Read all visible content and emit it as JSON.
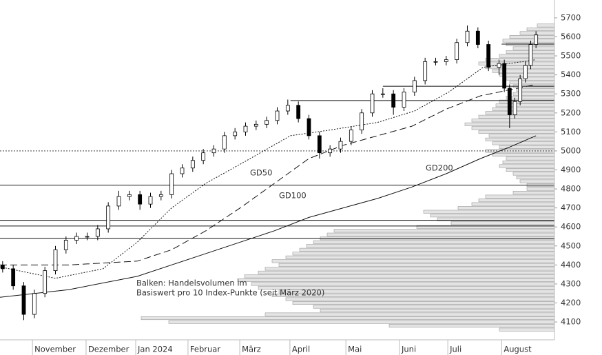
{
  "chart_data": {
    "type": "candlestick",
    "xlim": [
      0,
      210
    ],
    "xticks": [
      {
        "value": 12.3,
        "label": "November"
      },
      {
        "value": 32.6,
        "label": "Dezember"
      },
      {
        "value": 51.4,
        "label": "Jan 2024"
      },
      {
        "value": 71.2,
        "label": "Februar"
      },
      {
        "value": 90.8,
        "label": "März"
      },
      {
        "value": 109.8,
        "label": "April"
      },
      {
        "value": 131,
        "label": "Mai"
      },
      {
        "value": 151.3,
        "label": "Juni"
      },
      {
        "value": 169.6,
        "label": "Juli"
      },
      {
        "value": 190,
        "label": "August"
      }
    ],
    "ylim": [
      4006,
      5794
    ],
    "yticks": [
      4100,
      4200,
      4300,
      4400,
      4500,
      4600,
      4700,
      4800,
      4900,
      5000,
      5100,
      5200,
      5300,
      5400,
      5500,
      5600,
      5700
    ],
    "x": [
      1,
      5,
      9,
      13,
      17,
      21,
      25,
      29,
      33,
      37,
      41,
      45,
      49,
      53,
      57,
      61,
      65,
      69,
      73,
      77,
      81,
      85,
      89,
      93,
      97,
      101,
      105,
      109,
      113,
      117,
      121,
      125,
      129,
      133,
      137,
      141,
      145,
      149,
      153,
      157,
      161,
      165,
      169,
      173,
      177,
      181,
      185,
      189,
      191,
      193,
      195,
      197,
      199,
      201,
      203
    ],
    "open": [
      4400,
      4380,
      4290,
      4140,
      4250,
      4370,
      4480,
      4530,
      4550,
      4550,
      4590,
      4710,
      4760,
      4770,
      4720,
      4760,
      4770,
      4880,
      4910,
      4950,
      4990,
      5010,
      5080,
      5100,
      5130,
      5140,
      5160,
      5210,
      5240,
      5170,
      5080,
      4990,
      5010,
      5050,
      5110,
      5200,
      5300,
      5300,
      5230,
      5310,
      5370,
      5470,
      5470,
      5480,
      5570,
      5630,
      5560,
      5440,
      5460,
      5330,
      5190,
      5260,
      5380,
      5450,
      5560
    ],
    "high": [
      4420,
      4400,
      4310,
      4270,
      4390,
      4500,
      4550,
      4570,
      4570,
      4610,
      4730,
      4790,
      4790,
      4790,
      4780,
      4790,
      4900,
      4930,
      4970,
      5010,
      5030,
      5100,
      5120,
      5150,
      5160,
      5180,
      5230,
      5270,
      5260,
      5190,
      5100,
      5030,
      5070,
      5130,
      5220,
      5320,
      5330,
      5320,
      5330,
      5390,
      5490,
      5490,
      5500,
      5590,
      5660,
      5650,
      5580,
      5480,
      5480,
      5350,
      5280,
      5400,
      5470,
      5580,
      5630
    ],
    "low": [
      4360,
      4270,
      4110,
      4120,
      4230,
      4350,
      4460,
      4510,
      4530,
      4530,
      4570,
      4690,
      4740,
      4690,
      4700,
      4740,
      4750,
      4860,
      4890,
      4930,
      4970,
      4990,
      5060,
      5080,
      5110,
      5120,
      5140,
      5190,
      5150,
      5060,
      4960,
      4970,
      4990,
      5030,
      5090,
      5180,
      5280,
      5190,
      5210,
      5290,
      5350,
      5450,
      5450,
      5460,
      5550,
      5540,
      5420,
      5400,
      5310,
      5120,
      5170,
      5240,
      5360,
      5430,
      5540
    ],
    "close": [
      4380,
      4290,
      4140,
      4250,
      4370,
      4480,
      4530,
      4550,
      4550,
      4590,
      4710,
      4760,
      4770,
      4720,
      4760,
      4770,
      4880,
      4910,
      4950,
      4990,
      5010,
      5080,
      5100,
      5130,
      5140,
      5160,
      5210,
      5240,
      5170,
      5080,
      4990,
      5010,
      5050,
      5110,
      5200,
      5300,
      5300,
      5230,
      5310,
      5370,
      5470,
      5470,
      5480,
      5570,
      5630,
      5560,
      5440,
      5460,
      5330,
      5190,
      5260,
      5380,
      5450,
      5560,
      5610
    ],
    "moving_averages": [
      {
        "name": "GD50",
        "style": "dotted",
        "x": [
          0,
          21,
          39,
          52,
          65,
          78,
          91,
          110,
          125,
          143,
          157,
          170,
          183,
          203
        ],
        "values": [
          4390,
          4330,
          4380,
          4520,
          4700,
          4830,
          4930,
          5080,
          5110,
          5150,
          5210,
          5310,
          5440,
          5480
        ]
      },
      {
        "name": "GD100",
        "style": "dashed",
        "x": [
          0,
          26,
          52,
          65,
          78,
          91,
          104,
          117,
          130,
          143,
          156,
          169,
          182,
          203
        ],
        "values": [
          4400,
          4400,
          4420,
          4480,
          4580,
          4700,
          4830,
          4960,
          5030,
          5080,
          5130,
          5220,
          5290,
          5350
        ]
      },
      {
        "name": "GD200",
        "style": "solid",
        "x": [
          0,
          26,
          52,
          78,
          104,
          117,
          130,
          143,
          156,
          169,
          182,
          193,
          203
        ],
        "values": [
          4230,
          4270,
          4340,
          4460,
          4580,
          4650,
          4700,
          4750,
          4810,
          4880,
          4960,
          5020,
          5080
        ]
      }
    ],
    "levels": [
      {
        "value": 5562,
        "from": 190
      },
      {
        "value": 5340,
        "from": 145
      },
      {
        "value": 5265,
        "from": 110
      },
      {
        "value": 4820,
        "from": 0
      },
      {
        "value": 4635,
        "from": 0
      },
      {
        "value": 4605,
        "from": 0
      },
      {
        "value": 4540,
        "from": 0
      }
    ],
    "reference_line": 5000,
    "volume_profile": {
      "price": [
        4060,
        4080,
        4100,
        4120,
        4140,
        4160,
        4180,
        4200,
        4220,
        4240,
        4260,
        4280,
        4300,
        4320,
        4340,
        4360,
        4380,
        4400,
        4420,
        4440,
        4460,
        4480,
        4500,
        4520,
        4540,
        4560,
        4580,
        4600,
        4620,
        4640,
        4660,
        4680,
        4700,
        4720,
        4740,
        4760,
        4780,
        4800,
        4820,
        4840,
        4860,
        4880,
        4900,
        4920,
        4940,
        4960,
        4980,
        5000,
        5020,
        5040,
        5060,
        5080,
        5100,
        5120,
        5140,
        5160,
        5180,
        5200,
        5220,
        5240,
        5260,
        5280,
        5300,
        5320,
        5340,
        5360,
        5380,
        5400,
        5420,
        5440,
        5460,
        5480,
        5500,
        5520,
        5540,
        5560,
        5580,
        5600,
        5620,
        5640,
        5660
      ],
      "volume": [
        80,
        240,
        560,
        600,
        420,
        340,
        350,
        380,
        390,
        410,
        400,
        430,
        440,
        460,
        450,
        430,
        420,
        400,
        410,
        390,
        380,
        370,
        360,
        350,
        340,
        330,
        320,
        200,
        150,
        170,
        180,
        190,
        140,
        120,
        110,
        100,
        60,
        40,
        40,
        50,
        55,
        60,
        70,
        80,
        75,
        70,
        90,
        100,
        80,
        90,
        100,
        95,
        110,
        120,
        130,
        120,
        110,
        100,
        90,
        85,
        80,
        70,
        60,
        55,
        60,
        65,
        70,
        80,
        90,
        100,
        110,
        100,
        80,
        70,
        60,
        70,
        75,
        65,
        50,
        40,
        25
      ]
    },
    "note_line1": "Balken: Handelsvolumen im",
    "note_line2": "Basiswert pro 10 Index-Punkte (seit März 2020)"
  }
}
